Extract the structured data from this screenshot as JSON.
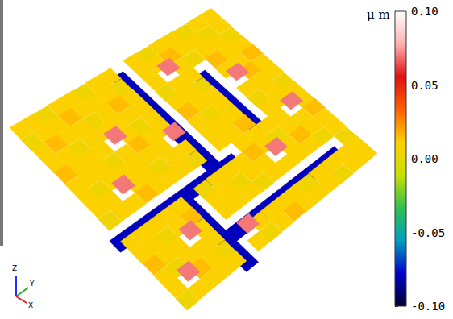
{
  "chart_data": {
    "type": "surface",
    "z": [
      [
        0.01,
        0.01,
        0.005,
        0.01,
        0.015,
        0.01,
        0.01,
        0.005,
        0.01,
        0.01,
        0.015,
        0.01,
        0.01,
        0.005,
        0.01,
        0.01
      ],
      [
        0.01,
        0.005,
        0.01,
        0.01,
        0.01,
        0.015,
        0.01,
        0.01,
        0.01,
        0.07,
        0.01,
        0.01,
        0.005,
        -0.08,
        0.01,
        0.01
      ],
      [
        0.005,
        0.01,
        0.01,
        0.015,
        0.01,
        0.07,
        0.01,
        0.005,
        0.01,
        0.01,
        0.01,
        0.015,
        0.01,
        -0.08,
        0.01,
        0.005
      ],
      [
        0.01,
        0.01,
        0.005,
        -0.08,
        -0.08,
        -0.08,
        -0.08,
        -0.08,
        -0.08,
        0.01,
        0.005,
        0.01,
        0.01,
        -0.08,
        0.01,
        0.01
      ],
      [
        0.01,
        0.015,
        0.01,
        0.01,
        0.005,
        0.01,
        0.01,
        0.01,
        0.015,
        0.01,
        0.01,
        0.07,
        0.01,
        -0.08,
        0.005,
        0.01
      ],
      [
        0.005,
        0.01,
        0.07,
        0.01,
        0.01,
        0.01,
        0.005,
        0.01,
        0.01,
        0.01,
        0.015,
        0.01,
        0.01,
        -0.08,
        0.01,
        0.01
      ],
      [
        0.01,
        0.01,
        0.01,
        0.005,
        0.01,
        0.015,
        0.01,
        0.01,
        0.01,
        -0.08,
        0.01,
        0.01,
        0.005,
        -0.08,
        0.01,
        0.015
      ],
      [
        -0.08,
        -0.08,
        -0.08,
        -0.08,
        -0.08,
        -0.08,
        -0.08,
        -0.08,
        -0.08,
        -0.08,
        0.01,
        0.005,
        0.01,
        -0.08,
        0.01,
        0.01
      ],
      [
        0.01,
        0.005,
        0.01,
        0.01,
        0.01,
        0.01,
        0.07,
        0.01,
        0.005,
        -0.08,
        0.01,
        0.01,
        0.01,
        -0.08,
        0.01,
        0.005
      ],
      [
        0.01,
        0.01,
        0.015,
        0.01,
        0.005,
        0.01,
        0.01,
        0.01,
        0.01,
        -0.08,
        0.005,
        0.01,
        0.01,
        -0.08,
        0.07,
        0.01
      ],
      [
        0.005,
        0.01,
        0.01,
        0.01,
        0.01,
        0.015,
        0.01,
        0.005,
        0.01,
        -0.08,
        -0.08,
        -0.08,
        -0.08,
        -0.08,
        -0.08,
        -0.08
      ],
      [
        0.01,
        0.01,
        0.005,
        0.01,
        0.07,
        0.01,
        0.01,
        0.01,
        0.01,
        -0.08,
        0.01,
        0.015,
        0.01,
        0.01,
        0.005,
        0.01
      ],
      [
        0.01,
        0.015,
        0.01,
        0.01,
        0.01,
        0.005,
        0.01,
        0.01,
        0.015,
        -0.08,
        0.01,
        0.01,
        0.07,
        0.01,
        0.01,
        0.01
      ],
      [
        0.005,
        0.01,
        0.01,
        0.005,
        0.01,
        0.01,
        0.01,
        0.07,
        0.01,
        -0.08,
        0.01,
        0.005,
        0.01,
        0.01,
        0.015,
        0.01
      ],
      [
        0.01,
        0.01,
        0.015,
        0.01,
        0.01,
        0.01,
        0.005,
        0.01,
        0.01,
        -0.08,
        0.01,
        0.01,
        0.01,
        0.005,
        0.07,
        0.01
      ],
      [
        0.01,
        0.005,
        0.01,
        0.01,
        0.015,
        0.01,
        0.01,
        0.01,
        0.005,
        -0.08,
        0.01,
        0.01,
        0.015,
        0.01,
        0.01,
        0.005
      ]
    ],
    "colorbar": {
      "label": "μ m",
      "lim": [
        -0.1,
        0.1
      ],
      "ticks": [
        {
          "value": 0.1,
          "label": "0.10"
        },
        {
          "value": 0.05,
          "label": "0.05"
        },
        {
          "value": 0,
          "label": "0.00"
        },
        {
          "value": -0.05,
          "label": "-0.05"
        },
        {
          "value": -0.1,
          "label": "-0.10"
        }
      ]
    },
    "axis_labels": {
      "x": "X",
      "y": "Y",
      "z": "Z"
    }
  }
}
